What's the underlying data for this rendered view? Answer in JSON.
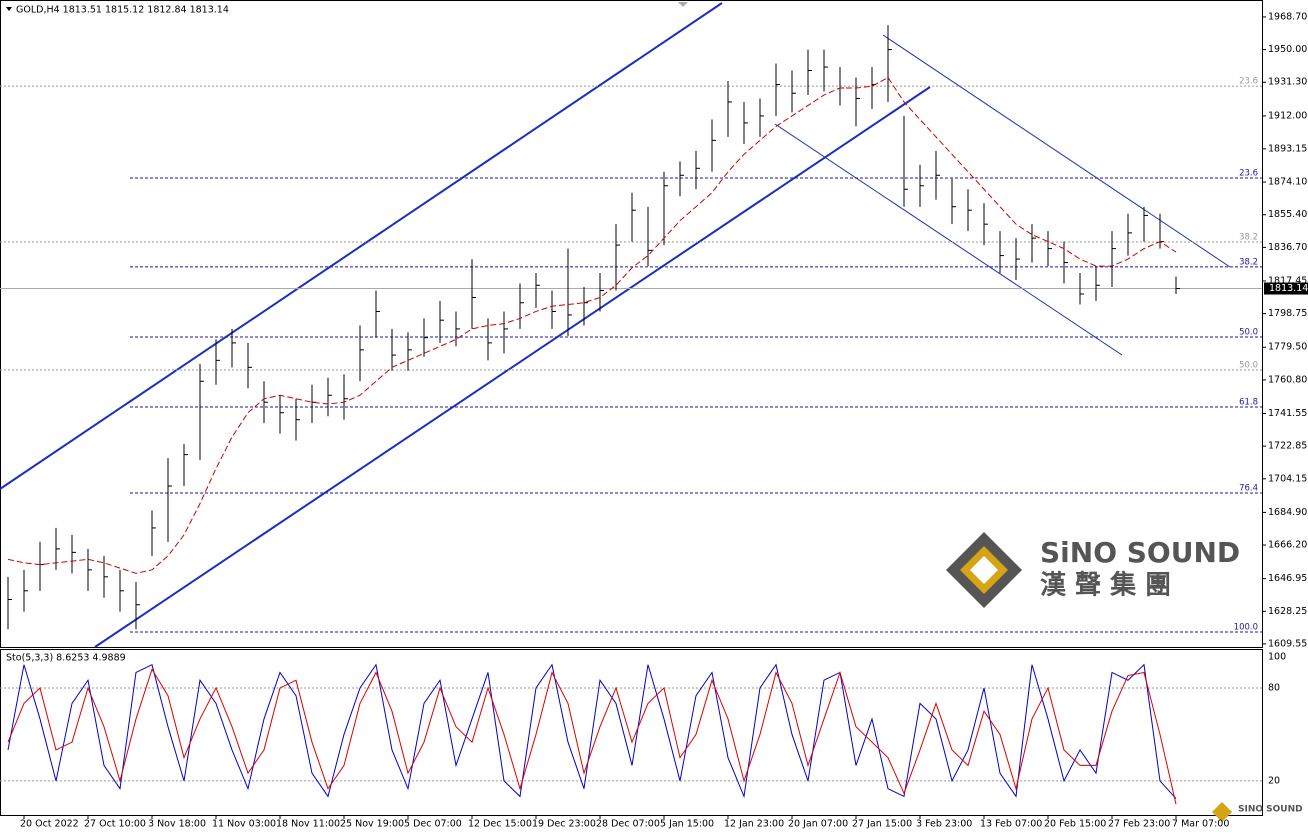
{
  "chart_data": [
    {
      "type": "ohlc",
      "title": "GOLD,H4  1813.51 1815.12 1812.84 1813.14",
      "categories": [
        null,
        "20 Oct 2022",
        null,
        null,
        null,
        "27 Oct 10:00",
        null,
        null,
        null,
        "3 Nov 18:00",
        null,
        null,
        null,
        "11 Nov 03:00",
        null,
        null,
        null,
        "18 Nov 11:00",
        null,
        null,
        null,
        "25 Nov 19:00",
        null,
        null,
        null,
        "5 Dec 07:00",
        null,
        null,
        null,
        "12 Dec 15:00",
        null,
        null,
        null,
        "19 Dec 23:00",
        null,
        null,
        null,
        "28 Dec 07:00",
        null,
        null,
        null,
        "5 Jan 15:00",
        null,
        null,
        null,
        "12 Jan 23:00",
        null,
        null,
        null,
        "20 Jan 07:00",
        null,
        null,
        null,
        "27 Jan 15:00",
        null,
        null,
        null,
        "3 Feb 23:00",
        null,
        null,
        null,
        "13 Feb 07:00",
        null,
        null,
        null,
        "20 Feb 15:00",
        null,
        null,
        null,
        "27 Feb 23:00",
        null,
        null,
        null,
        "7 Mar 07:00"
      ],
      "high": [
        1648,
        1652,
        1668,
        1676,
        1672,
        1664,
        1660,
        1652,
        1645,
        1686,
        1716,
        1724,
        1770,
        1784,
        1790,
        1782,
        1760,
        1752,
        1750,
        1758,
        1762,
        1764,
        1792,
        1812,
        1790,
        1788,
        1796,
        1806,
        1800,
        1830,
        1796,
        1800,
        1816,
        1822,
        1812,
        1836,
        1814,
        1822,
        1850,
        1868,
        1860,
        1880,
        1886,
        1892,
        1910,
        1932,
        1920,
        1922,
        1942,
        1938,
        1950,
        1950,
        1940,
        1934,
        1940,
        1964,
        1912,
        1884,
        1892,
        1876,
        1870,
        1862,
        1846,
        1842,
        1850,
        1846,
        1840,
        1822,
        1826,
        1846,
        1856,
        1860,
        1856,
        1820
      ],
      "low": [
        1618,
        1628,
        1640,
        1652,
        1650,
        1640,
        1636,
        1628,
        1618,
        1660,
        1668,
        1700,
        1715,
        1758,
        1768,
        1756,
        1736,
        1730,
        1726,
        1736,
        1740,
        1738,
        1760,
        1785,
        1766,
        1766,
        1774,
        1782,
        1780,
        1790,
        1772,
        1776,
        1790,
        1802,
        1790,
        1786,
        1792,
        1800,
        1812,
        1840,
        1826,
        1838,
        1866,
        1870,
        1880,
        1900,
        1896,
        1900,
        1912,
        1914,
        1924,
        1926,
        1918,
        1906,
        1916,
        1920,
        1860,
        1860,
        1864,
        1850,
        1846,
        1838,
        1822,
        1818,
        1828,
        1826,
        1816,
        1804,
        1806,
        1814,
        1832,
        1840,
        1836,
        1810
      ],
      "close": [
        1635,
        1640,
        1655,
        1664,
        1662,
        1652,
        1648,
        1640,
        1632,
        1676,
        1700,
        1718,
        1760,
        1772,
        1782,
        1768,
        1748,
        1742,
        1738,
        1748,
        1752,
        1750,
        1778,
        1800,
        1775,
        1778,
        1785,
        1795,
        1790,
        1808,
        1782,
        1790,
        1805,
        1815,
        1800,
        1798,
        1805,
        1812,
        1838,
        1858,
        1835,
        1872,
        1878,
        1882,
        1898,
        1920,
        1908,
        1912,
        1930,
        1925,
        1938,
        1940,
        1928,
        1922,
        1930,
        1950,
        1870,
        1872,
        1878,
        1860,
        1858,
        1850,
        1832,
        1830,
        1842,
        1836,
        1828,
        1810,
        1815,
        1836,
        1845,
        1855,
        1840,
        1813.14
      ],
      "ma": [
        1658,
        1656,
        1655,
        1656,
        1657,
        1658,
        1656,
        1653,
        1650,
        1652,
        1660,
        1672,
        1690,
        1710,
        1728,
        1742,
        1750,
        1752,
        1750,
        1748,
        1747,
        1748,
        1752,
        1760,
        1768,
        1772,
        1776,
        1780,
        1784,
        1790,
        1792,
        1793,
        1796,
        1800,
        1803,
        1804,
        1805,
        1808,
        1815,
        1825,
        1832,
        1842,
        1852,
        1860,
        1868,
        1880,
        1890,
        1898,
        1906,
        1912,
        1918,
        1924,
        1928,
        1928,
        1929,
        1934,
        1920,
        1910,
        1900,
        1890,
        1880,
        1870,
        1860,
        1850,
        1844,
        1840,
        1836,
        1830,
        1826,
        1826,
        1830,
        1836,
        1840,
        1834
      ],
      "bar_color": "#000000",
      "ma_color": "#cc0000",
      "ylim": [
        1607.8,
        1978.4
      ],
      "yticks": [
        {
          "value": 1968.7,
          "label": "1968.70"
        },
        {
          "value": 1950,
          "label": "1950.00"
        },
        {
          "value": 1931.3,
          "label": "1931.30"
        },
        {
          "value": 1912,
          "label": "1912.00"
        },
        1893.15,
        {
          "value": 1874.1,
          "label": "1874.10"
        },
        {
          "value": 1855.4,
          "label": "1855.40"
        },
        {
          "value": 1836.7,
          "label": "1836.70"
        },
        1817.45,
        1798.75,
        {
          "value": 1779.5,
          "label": "1779.50"
        },
        {
          "value": 1760.8,
          "label": "1760.80"
        },
        1741.55,
        1722.85,
        1704.15,
        {
          "value": 1684.9,
          "label": "1684.90"
        },
        {
          "value": 1666.2,
          "label": "1666.20"
        },
        1646.95,
        1628.25,
        1609.55
      ],
      "last_price": 1813.14,
      "fib_levels": [
        {
          "level": 23.6,
          "price": 1929.1,
          "color": "#999999"
        },
        {
          "level": 38.2,
          "price": 1839.8,
          "color": "#999999"
        },
        {
          "level": {
            "value": 50,
            "label": "50.0"
          },
          "price": 1766.5,
          "color": "#999999"
        },
        {
          "level": 23.6,
          "price": 1876.45,
          "color": "#1a1aa6"
        },
        {
          "level": 38.2,
          "price": 1825.5,
          "color": "#1a1aa6"
        },
        {
          "level": {
            "value": 50,
            "label": "50.0"
          },
          "price": 1785.4,
          "color": "#1a1aa6"
        },
        {
          "level": 61.8,
          "price": 1745.3,
          "color": "#1a1aa6"
        },
        {
          "level": 76.4,
          "price": 1696.0,
          "color": "#1a1aa6"
        },
        {
          "level": {
            "value": 100,
            "label": "100.0"
          },
          "price": 1616.4,
          "color": "#1a1aa6"
        }
      ]
    },
    {
      "type": "line",
      "title": "Sto(5,3,3) 8.6253 4.9889",
      "series": [
        {
          "name": "Main",
          "color": "#0000cc",
          "values": [
            40,
            95,
            60,
            20,
            70,
            85,
            30,
            15,
            90,
            95,
            55,
            20,
            85,
            70,
            40,
            15,
            60,
            90,
            75,
            25,
            10,
            50,
            80,
            95,
            40,
            15,
            70,
            85,
            30,
            60,
            90,
            20,
            10,
            80,
            95,
            45,
            15,
            85,
            70,
            30,
            95,
            60,
            20,
            75,
            90,
            35,
            10,
            80,
            95,
            50,
            20,
            85,
            90,
            30,
            60,
            15,
            10,
            70,
            60,
            20,
            40,
            80,
            25,
            10,
            95,
            60,
            20,
            40,
            25,
            90,
            85,
            95,
            20,
            8.6253
          ]
        },
        {
          "name": "Signal",
          "color": "#dd0000",
          "values": [
            45,
            70,
            80,
            40,
            45,
            80,
            55,
            20,
            60,
            92,
            75,
            35,
            60,
            80,
            55,
            25,
            40,
            80,
            85,
            45,
            15,
            30,
            70,
            90,
            65,
            25,
            45,
            80,
            55,
            45,
            80,
            50,
            15,
            50,
            90,
            70,
            25,
            55,
            80,
            45,
            70,
            80,
            35,
            50,
            85,
            60,
            20,
            50,
            90,
            70,
            30,
            60,
            90,
            55,
            45,
            35,
            12,
            40,
            70,
            40,
            30,
            65,
            50,
            15,
            60,
            80,
            40,
            30,
            30,
            65,
            88,
            90,
            50,
            4.9889
          ]
        }
      ],
      "ylim": [
        -2,
        104.5
      ],
      "yticks": [
        100,
        80,
        20
      ]
    }
  ],
  "watermark": {
    "brand": "SiNO SOUND",
    "chinese": "漢 聲 集 團",
    "footer": "SINO SOUND"
  }
}
